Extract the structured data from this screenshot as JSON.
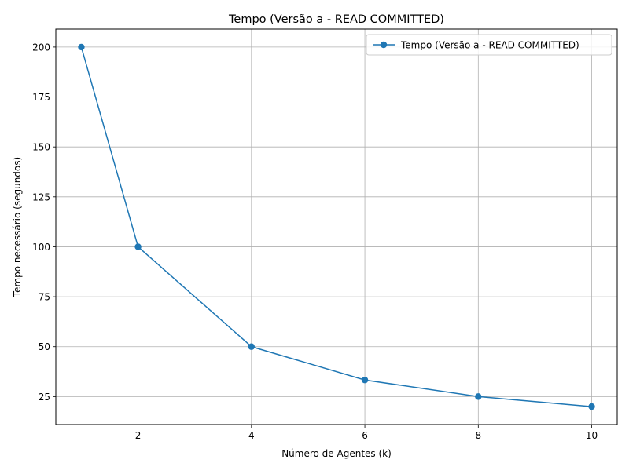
{
  "chart_data": {
    "type": "line",
    "title": "Tempo (Versão a - READ COMMITTED)",
    "xlabel": "Número de Agentes (k)",
    "ylabel": "Tempo necessário (segundos)",
    "xlim": [
      0.55,
      10.45
    ],
    "ylim": [
      11.0,
      209.0
    ],
    "xticks": [
      2,
      4,
      6,
      8,
      10
    ],
    "xtick_labels": [
      "2",
      "4",
      "6",
      "8",
      "10"
    ],
    "yticks": [
      25,
      50,
      75,
      100,
      125,
      150,
      175,
      200
    ],
    "ytick_labels": [
      "25",
      "50",
      "75",
      "100",
      "125",
      "150",
      "175",
      "200"
    ],
    "grid": true,
    "legend_position": "top-right",
    "series": [
      {
        "name": "Tempo (Versão a - READ COMMITTED)",
        "color": "#1f77b4",
        "marker": "circle",
        "x": [
          1,
          2,
          4,
          6,
          8,
          10
        ],
        "y": [
          200,
          100,
          50,
          33.3,
          25,
          20
        ]
      }
    ]
  }
}
